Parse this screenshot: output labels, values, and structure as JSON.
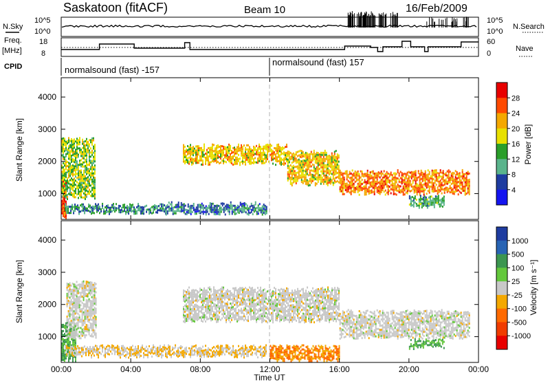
{
  "header": {
    "station": "Saskatoon (fitACF)",
    "beam": "Beam 10",
    "date": "16/Feb/2009"
  },
  "top_panels": {
    "nsky_label": "N.Sky",
    "nsearch_label": "N.Search",
    "freq_label": "Freq.",
    "freq_unit": "[MHz]",
    "nave_label": "Nave",
    "cpid_label": "CPID",
    "noise_left_ticks": [
      "10^5",
      "10^0"
    ],
    "noise_right_ticks": [
      "10^5",
      "10^0"
    ],
    "freq_left_ticks": [
      "18",
      "8"
    ],
    "nave_right_ticks": [
      "60",
      "0"
    ]
  },
  "cpid": {
    "segments": [
      {
        "start_hour": 0.0,
        "label": "normalsound (fast) -157"
      },
      {
        "start_hour": 12.0,
        "label": "normalsound (fast) 157"
      }
    ]
  },
  "x_axis": {
    "label": "Time UT",
    "ticks": [
      "00:00",
      "04:00",
      "08:00",
      "12:00",
      "16:00",
      "20:00",
      "00:00"
    ]
  },
  "power_colorbar": {
    "label": "Power [dB]",
    "ticks": [
      "28",
      "24",
      "20",
      "16",
      "12",
      "8",
      "4"
    ],
    "colors": [
      "#e80000",
      "#ff4a00",
      "#f4a800",
      "#e8e000",
      "#2a9e2a",
      "#5ab48c",
      "#1e3ca0",
      "#1414f0"
    ]
  },
  "velocity_colorbar": {
    "label": "Velocity [m s⁻¹]",
    "ticks": [
      "1000",
      "500",
      "100",
      "25",
      "-25",
      "-100",
      "-500",
      "-1000"
    ],
    "colors": [
      "#1e3ca0",
      "#2864b4",
      "#3c9650",
      "#64c83c",
      "#c8c8c8",
      "#f4a800",
      "#ff6a00",
      "#f03c00",
      "#e80000"
    ]
  },
  "chart_data": [
    {
      "type": "heatmap",
      "title": "",
      "xlabel": "Time UT",
      "ylabel": "Slant Range [km]",
      "y_ticks": [
        "1000",
        "2000",
        "3000",
        "4000"
      ],
      "xlim_hours": [
        0,
        24
      ],
      "ylim_km": [
        200,
        4600
      ],
      "colorbar": "Power [dB]",
      "echo_bands": [
        {
          "t0": 0.0,
          "t1": 0.3,
          "r0": 300,
          "r1": 1400,
          "power": 28
        },
        {
          "t0": 0.0,
          "t1": 1.9,
          "r0": 900,
          "r1": 2700,
          "power": 16
        },
        {
          "t0": 0.2,
          "t1": 6.0,
          "r0": 400,
          "r1": 650,
          "power": 10
        },
        {
          "t0": 6.0,
          "t1": 11.8,
          "r0": 400,
          "r1": 700,
          "power": 8
        },
        {
          "t0": 7.0,
          "t1": 13.0,
          "r0": 1950,
          "r1": 2500,
          "power": 20
        },
        {
          "t0": 13.0,
          "t1": 16.0,
          "r0": 1300,
          "r1": 2300,
          "power": 20
        },
        {
          "t0": 16.0,
          "t1": 23.5,
          "r0": 1000,
          "r1": 1700,
          "power": 24
        },
        {
          "t0": 20.0,
          "t1": 22.0,
          "r0": 600,
          "r1": 900,
          "power": 12
        }
      ]
    },
    {
      "type": "heatmap",
      "title": "",
      "xlabel": "Time UT",
      "ylabel": "Slant Range [km]",
      "y_ticks": [
        "1000",
        "2000",
        "3000",
        "4000"
      ],
      "xlim_hours": [
        0,
        24
      ],
      "ylim_km": [
        200,
        4600
      ],
      "colorbar": "Velocity [m s⁻¹]",
      "echo_bands": [
        {
          "t0": 0.0,
          "t1": 0.8,
          "r0": 300,
          "r1": 1400,
          "velocity": 100
        },
        {
          "t0": 0.3,
          "t1": 2.0,
          "r0": 1000,
          "r1": 2700,
          "velocity": 0
        },
        {
          "t0": 0.2,
          "t1": 11.8,
          "r0": 400,
          "r1": 700,
          "velocity": -25
        },
        {
          "t0": 7.0,
          "t1": 16.0,
          "r0": 1500,
          "r1": 2500,
          "velocity": 0
        },
        {
          "t0": 16.0,
          "t1": 23.5,
          "r0": 1000,
          "r1": 1800,
          "velocity": 0
        },
        {
          "t0": 20.0,
          "t1": 22.0,
          "r0": 650,
          "r1": 900,
          "velocity": 100
        },
        {
          "t0": 12.0,
          "t1": 16.0,
          "r0": 300,
          "r1": 700,
          "velocity": -100
        }
      ]
    }
  ]
}
